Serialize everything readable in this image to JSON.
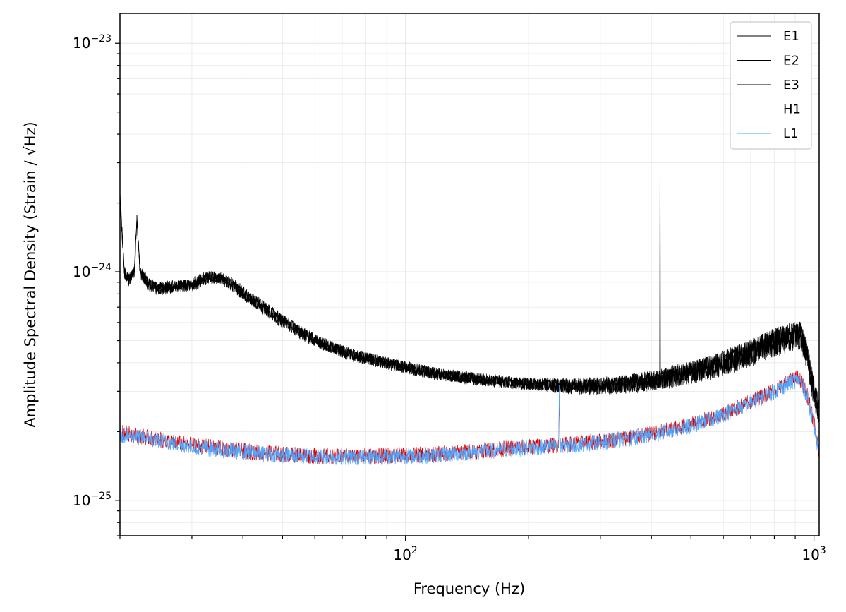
{
  "chart_data": {
    "type": "line",
    "title": "",
    "xlabel": "Frequency (Hz)",
    "ylabel_prefix": "Amplitude Spectral Density (Strain / ",
    "ylabel_radicand": "Hz",
    "ylabel_suffix": ")",
    "xscale": "log",
    "yscale": "log",
    "xlim": [
      20,
      1030
    ],
    "ylim": [
      7e-26,
      1.35e-23
    ],
    "grid": true,
    "legend_position": "top-right",
    "x_ticks": [
      {
        "value": 100,
        "base": "10",
        "exp": "2"
      },
      {
        "value": 1000,
        "base": "10",
        "exp": "3"
      }
    ],
    "y_ticks": [
      {
        "value": 1e-25,
        "base": "10",
        "exp": "−25"
      },
      {
        "value": 1e-24,
        "base": "10",
        "exp": "−24"
      },
      {
        "value": 1e-23,
        "base": "10",
        "exp": "−23"
      }
    ],
    "series": [
      {
        "name": "E1",
        "color": "#000000",
        "baseline": "et",
        "points": [
          [
            20,
            2.2e-24
          ],
          [
            20.5,
            1e-24
          ],
          [
            21,
            9.2e-25
          ],
          [
            21.7,
            1.02e-24
          ],
          [
            22,
            1.75e-24
          ],
          [
            22.4,
            1e-24
          ],
          [
            23.5,
            9e-25
          ],
          [
            25,
            8.4e-25
          ],
          [
            27,
            8.6e-25
          ],
          [
            30,
            8.8e-25
          ],
          [
            33,
            9.5e-25
          ],
          [
            35,
            9.4e-25
          ],
          [
            38,
            8.7e-25
          ],
          [
            42,
            7.6e-25
          ],
          [
            48,
            6.4e-25
          ],
          [
            55,
            5.5e-25
          ],
          [
            62,
            4.9e-25
          ],
          [
            70,
            4.5e-25
          ],
          [
            80,
            4.2e-25
          ],
          [
            100,
            3.85e-25
          ],
          [
            120,
            3.6e-25
          ],
          [
            150,
            3.4e-25
          ],
          [
            200,
            3.25e-25
          ],
          [
            250,
            3.18e-25
          ],
          [
            300,
            3.18e-25
          ],
          [
            350,
            3.25e-25
          ],
          [
            400,
            3.35e-25
          ],
          [
            419,
            3.4e-25
          ],
          [
            420,
            4.8e-24
          ],
          [
            421,
            3.4e-25
          ],
          [
            500,
            3.65e-25
          ],
          [
            600,
            4e-25
          ],
          [
            700,
            4.45e-25
          ],
          [
            800,
            4.95e-25
          ],
          [
            880,
            5.25e-25
          ],
          [
            930,
            5.3e-25
          ],
          [
            960,
            4.4e-25
          ],
          [
            990,
            3.3e-25
          ],
          [
            1030,
            2.4e-25
          ]
        ]
      },
      {
        "name": "E2",
        "color": "#000000",
        "baseline": "et",
        "points": [
          [
            20,
            2e-24
          ],
          [
            20.5,
            1e-24
          ],
          [
            21,
            9.3e-25
          ],
          [
            21.7,
            1e-24
          ],
          [
            22,
            1.7e-24
          ],
          [
            22.4,
            1e-24
          ],
          [
            23.5,
            8.8e-25
          ],
          [
            25,
            8.3e-25
          ],
          [
            27,
            8.5e-25
          ],
          [
            30,
            8.9e-25
          ],
          [
            33,
            9.6e-25
          ],
          [
            35,
            9.3e-25
          ],
          [
            38,
            8.6e-25
          ],
          [
            42,
            7.5e-25
          ],
          [
            48,
            6.3e-25
          ],
          [
            55,
            5.4e-25
          ],
          [
            62,
            4.85e-25
          ],
          [
            70,
            4.45e-25
          ],
          [
            80,
            4.15e-25
          ],
          [
            100,
            3.8e-25
          ],
          [
            120,
            3.55e-25
          ],
          [
            150,
            3.38e-25
          ],
          [
            200,
            3.22e-25
          ],
          [
            250,
            3.15e-25
          ],
          [
            300,
            3.15e-25
          ],
          [
            350,
            3.22e-25
          ],
          [
            400,
            3.32e-25
          ],
          [
            500,
            3.62e-25
          ],
          [
            600,
            3.98e-25
          ],
          [
            700,
            4.42e-25
          ],
          [
            800,
            4.9e-25
          ],
          [
            880,
            5.2e-25
          ],
          [
            930,
            5.25e-25
          ],
          [
            960,
            4.35e-25
          ],
          [
            990,
            3.25e-25
          ],
          [
            1030,
            2.38e-25
          ]
        ]
      },
      {
        "name": "E3",
        "color": "#000000",
        "baseline": "et",
        "points": [
          [
            20,
            2.1e-24
          ],
          [
            20.5,
            9.9e-25
          ],
          [
            21,
            9.1e-25
          ],
          [
            21.7,
            1.01e-24
          ],
          [
            22,
            1.72e-24
          ],
          [
            22.4,
            9.9e-25
          ],
          [
            23.5,
            8.9e-25
          ],
          [
            25,
            8.5e-25
          ],
          [
            27,
            8.7e-25
          ],
          [
            30,
            8.7e-25
          ],
          [
            33,
            9.4e-25
          ],
          [
            35,
            9.5e-25
          ],
          [
            38,
            8.8e-25
          ],
          [
            42,
            7.7e-25
          ],
          [
            48,
            6.5e-25
          ],
          [
            55,
            5.5e-25
          ],
          [
            62,
            4.95e-25
          ],
          [
            70,
            4.5e-25
          ],
          [
            80,
            4.2e-25
          ],
          [
            100,
            3.82e-25
          ],
          [
            120,
            3.58e-25
          ],
          [
            150,
            3.42e-25
          ],
          [
            200,
            3.24e-25
          ],
          [
            250,
            3.2e-25
          ],
          [
            300,
            3.2e-25
          ],
          [
            350,
            3.24e-25
          ],
          [
            400,
            3.36e-25
          ],
          [
            500,
            3.66e-25
          ],
          [
            600,
            4.02e-25
          ],
          [
            700,
            4.48e-25
          ],
          [
            800,
            4.98e-25
          ],
          [
            880,
            5.28e-25
          ],
          [
            930,
            5.32e-25
          ],
          [
            960,
            4.42e-25
          ],
          [
            990,
            3.32e-25
          ],
          [
            1030,
            2.42e-25
          ]
        ]
      },
      {
        "name": "H1",
        "color": "#e00000",
        "baseline": "ligo",
        "points": [
          [
            20,
            2e-25
          ],
          [
            23,
            1.9e-25
          ],
          [
            27,
            1.8e-25
          ],
          [
            32,
            1.73e-25
          ],
          [
            40,
            1.65e-25
          ],
          [
            50,
            1.6e-25
          ],
          [
            60,
            1.57e-25
          ],
          [
            70,
            1.56e-25
          ],
          [
            80,
            1.57e-25
          ],
          [
            100,
            1.58e-25
          ],
          [
            120,
            1.6e-25
          ],
          [
            150,
            1.65e-25
          ],
          [
            200,
            1.72e-25
          ],
          [
            237,
            1.75e-25
          ],
          [
            238,
            2.9e-25
          ],
          [
            239,
            1.75e-25
          ],
          [
            300,
            1.82e-25
          ],
          [
            400,
            1.95e-25
          ],
          [
            500,
            2.15e-25
          ],
          [
            600,
            2.4e-25
          ],
          [
            700,
            2.7e-25
          ],
          [
            800,
            3.05e-25
          ],
          [
            880,
            3.35e-25
          ],
          [
            920,
            3.45e-25
          ],
          [
            960,
            2.95e-25
          ],
          [
            1000,
            2.2e-25
          ],
          [
            1030,
            1.6e-25
          ]
        ]
      },
      {
        "name": "L1",
        "color": "#4da6ff",
        "baseline": "ligo",
        "points": [
          [
            20,
            1.95e-25
          ],
          [
            23,
            1.87e-25
          ],
          [
            27,
            1.78e-25
          ],
          [
            32,
            1.7e-25
          ],
          [
            40,
            1.63e-25
          ],
          [
            50,
            1.58e-25
          ],
          [
            60,
            1.56e-25
          ],
          [
            70,
            1.55e-25
          ],
          [
            80,
            1.55e-25
          ],
          [
            100,
            1.56e-25
          ],
          [
            120,
            1.58e-25
          ],
          [
            150,
            1.63e-25
          ],
          [
            200,
            1.7e-25
          ],
          [
            237,
            1.73e-25
          ],
          [
            238,
            3.2e-25
          ],
          [
            239,
            1.73e-25
          ],
          [
            300,
            1.8e-25
          ],
          [
            400,
            1.93e-25
          ],
          [
            500,
            2.12e-25
          ],
          [
            600,
            2.38e-25
          ],
          [
            700,
            2.68e-25
          ],
          [
            800,
            3e-25
          ],
          [
            880,
            3.3e-25
          ],
          [
            920,
            3.4e-25
          ],
          [
            960,
            2.9e-25
          ],
          [
            1000,
            2.15e-25
          ],
          [
            1030,
            1.55e-25
          ]
        ]
      }
    ]
  }
}
